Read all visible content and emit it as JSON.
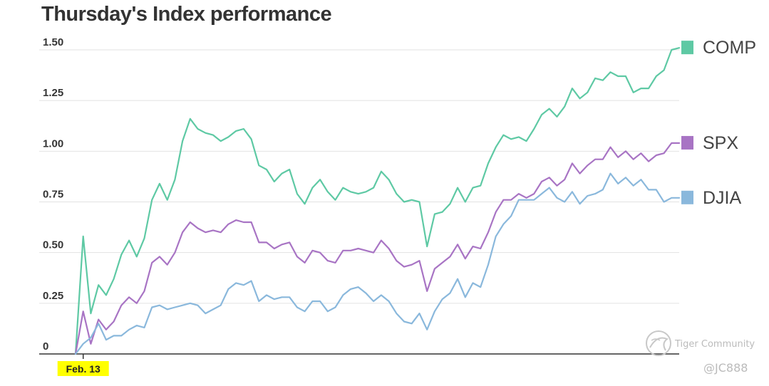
{
  "title": "Thursday's Index performance",
  "watermark": {
    "text": "Tiger Community",
    "handle": "@JC888"
  },
  "chart_data": {
    "type": "line",
    "title": "Thursday's Index performance",
    "xlabel": "",
    "ylabel": "",
    "ylim": [
      0,
      1.5
    ],
    "y_ticks": [
      {
        "value": 0,
        "label": "0"
      },
      {
        "value": 0.25,
        "label": "0.25"
      },
      {
        "value": 0.5,
        "label": "0.50"
      },
      {
        "value": 0.75,
        "label": "0.75"
      },
      {
        "value": 1.0,
        "label": "1.00"
      },
      {
        "value": 1.25,
        "label": "1.25"
      },
      {
        "value": 1.5,
        "label": "1.50"
      }
    ],
    "x_ticks": [
      {
        "index": 1,
        "label": "Feb. 13",
        "highlight": "#ffff00"
      }
    ],
    "grid": true,
    "legend_placement": "right, at end of each line",
    "series": [
      {
        "name": "COMP",
        "color": "#5ec9a4",
        "values": [
          0,
          0.58,
          0.2,
          0.34,
          0.29,
          0.37,
          0.49,
          0.56,
          0.48,
          0.57,
          0.76,
          0.84,
          0.76,
          0.86,
          1.05,
          1.16,
          1.11,
          1.09,
          1.08,
          1.05,
          1.07,
          1.1,
          1.11,
          1.06,
          0.93,
          0.91,
          0.85,
          0.89,
          0.91,
          0.79,
          0.74,
          0.82,
          0.86,
          0.8,
          0.76,
          0.82,
          0.8,
          0.79,
          0.8,
          0.82,
          0.9,
          0.86,
          0.79,
          0.75,
          0.76,
          0.75,
          0.53,
          0.69,
          0.7,
          0.74,
          0.82,
          0.75,
          0.82,
          0.83,
          0.94,
          1.02,
          1.08,
          1.06,
          1.07,
          1.05,
          1.11,
          1.18,
          1.21,
          1.17,
          1.22,
          1.31,
          1.26,
          1.29,
          1.36,
          1.35,
          1.39,
          1.37,
          1.37,
          1.29,
          1.31,
          1.31,
          1.37,
          1.4,
          1.5,
          1.51
        ]
      },
      {
        "name": "SPX",
        "color": "#a874c4",
        "values": [
          0,
          0.21,
          0.05,
          0.17,
          0.12,
          0.16,
          0.24,
          0.28,
          0.25,
          0.31,
          0.45,
          0.48,
          0.44,
          0.5,
          0.6,
          0.65,
          0.62,
          0.6,
          0.61,
          0.6,
          0.64,
          0.66,
          0.65,
          0.65,
          0.55,
          0.55,
          0.52,
          0.54,
          0.55,
          0.48,
          0.45,
          0.51,
          0.5,
          0.46,
          0.45,
          0.51,
          0.51,
          0.52,
          0.51,
          0.5,
          0.56,
          0.52,
          0.46,
          0.43,
          0.44,
          0.46,
          0.31,
          0.42,
          0.45,
          0.48,
          0.54,
          0.47,
          0.53,
          0.52,
          0.6,
          0.7,
          0.76,
          0.76,
          0.79,
          0.77,
          0.79,
          0.85,
          0.87,
          0.83,
          0.86,
          0.94,
          0.89,
          0.93,
          0.96,
          0.96,
          1.02,
          0.97,
          1.0,
          0.96,
          0.99,
          0.95,
          0.98,
          0.99,
          1.04,
          1.04
        ]
      },
      {
        "name": "DJIA",
        "color": "#8ab8dc",
        "values": [
          0,
          0.05,
          0.08,
          0.15,
          0.07,
          0.09,
          0.09,
          0.12,
          0.14,
          0.13,
          0.23,
          0.24,
          0.22,
          0.23,
          0.24,
          0.25,
          0.24,
          0.2,
          0.22,
          0.24,
          0.32,
          0.35,
          0.34,
          0.36,
          0.26,
          0.29,
          0.27,
          0.28,
          0.28,
          0.23,
          0.21,
          0.26,
          0.26,
          0.21,
          0.23,
          0.29,
          0.32,
          0.33,
          0.3,
          0.26,
          0.29,
          0.26,
          0.2,
          0.16,
          0.15,
          0.2,
          0.12,
          0.21,
          0.27,
          0.3,
          0.37,
          0.28,
          0.35,
          0.33,
          0.44,
          0.58,
          0.64,
          0.68,
          0.76,
          0.76,
          0.76,
          0.79,
          0.82,
          0.77,
          0.75,
          0.8,
          0.74,
          0.78,
          0.79,
          0.81,
          0.89,
          0.84,
          0.87,
          0.83,
          0.86,
          0.81,
          0.81,
          0.75,
          0.77,
          0.77
        ]
      }
    ]
  }
}
